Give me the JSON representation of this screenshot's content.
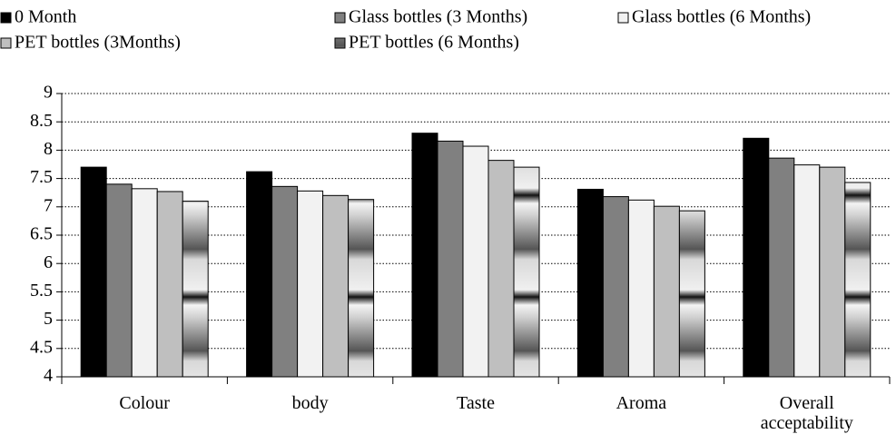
{
  "chart_data": {
    "type": "bar",
    "categories": [
      "Colour",
      "body",
      "Taste",
      "Aroma",
      "Overall acceptability"
    ],
    "series": [
      {
        "name": "0 Month",
        "color": "#000000",
        "values": [
          7.7,
          7.62,
          8.3,
          7.31,
          8.21
        ]
      },
      {
        "name": "Glass bottles (3 Months)",
        "color": "#808080",
        "values": [
          7.4,
          7.36,
          8.16,
          7.18,
          7.86
        ]
      },
      {
        "name": "Glass bottles (6 Months)",
        "color": "#f2f2f2",
        "values": [
          7.32,
          7.28,
          8.07,
          7.12,
          7.74
        ]
      },
      {
        "name": "PET bottles (3Months)",
        "color": "#bfbfbf",
        "values": [
          7.27,
          7.2,
          7.82,
          7.01,
          7.7
        ]
      },
      {
        "name": "PET bottles (6 Months)",
        "color": "url(#banded)",
        "values": [
          7.1,
          7.13,
          7.7,
          6.93,
          7.43
        ]
      }
    ],
    "ylim": [
      4,
      9
    ],
    "yticks": [
      4,
      4.5,
      5,
      5.5,
      6,
      6.5,
      7,
      7.5,
      8,
      8.5,
      9
    ],
    "grid": true,
    "legend": "top"
  }
}
